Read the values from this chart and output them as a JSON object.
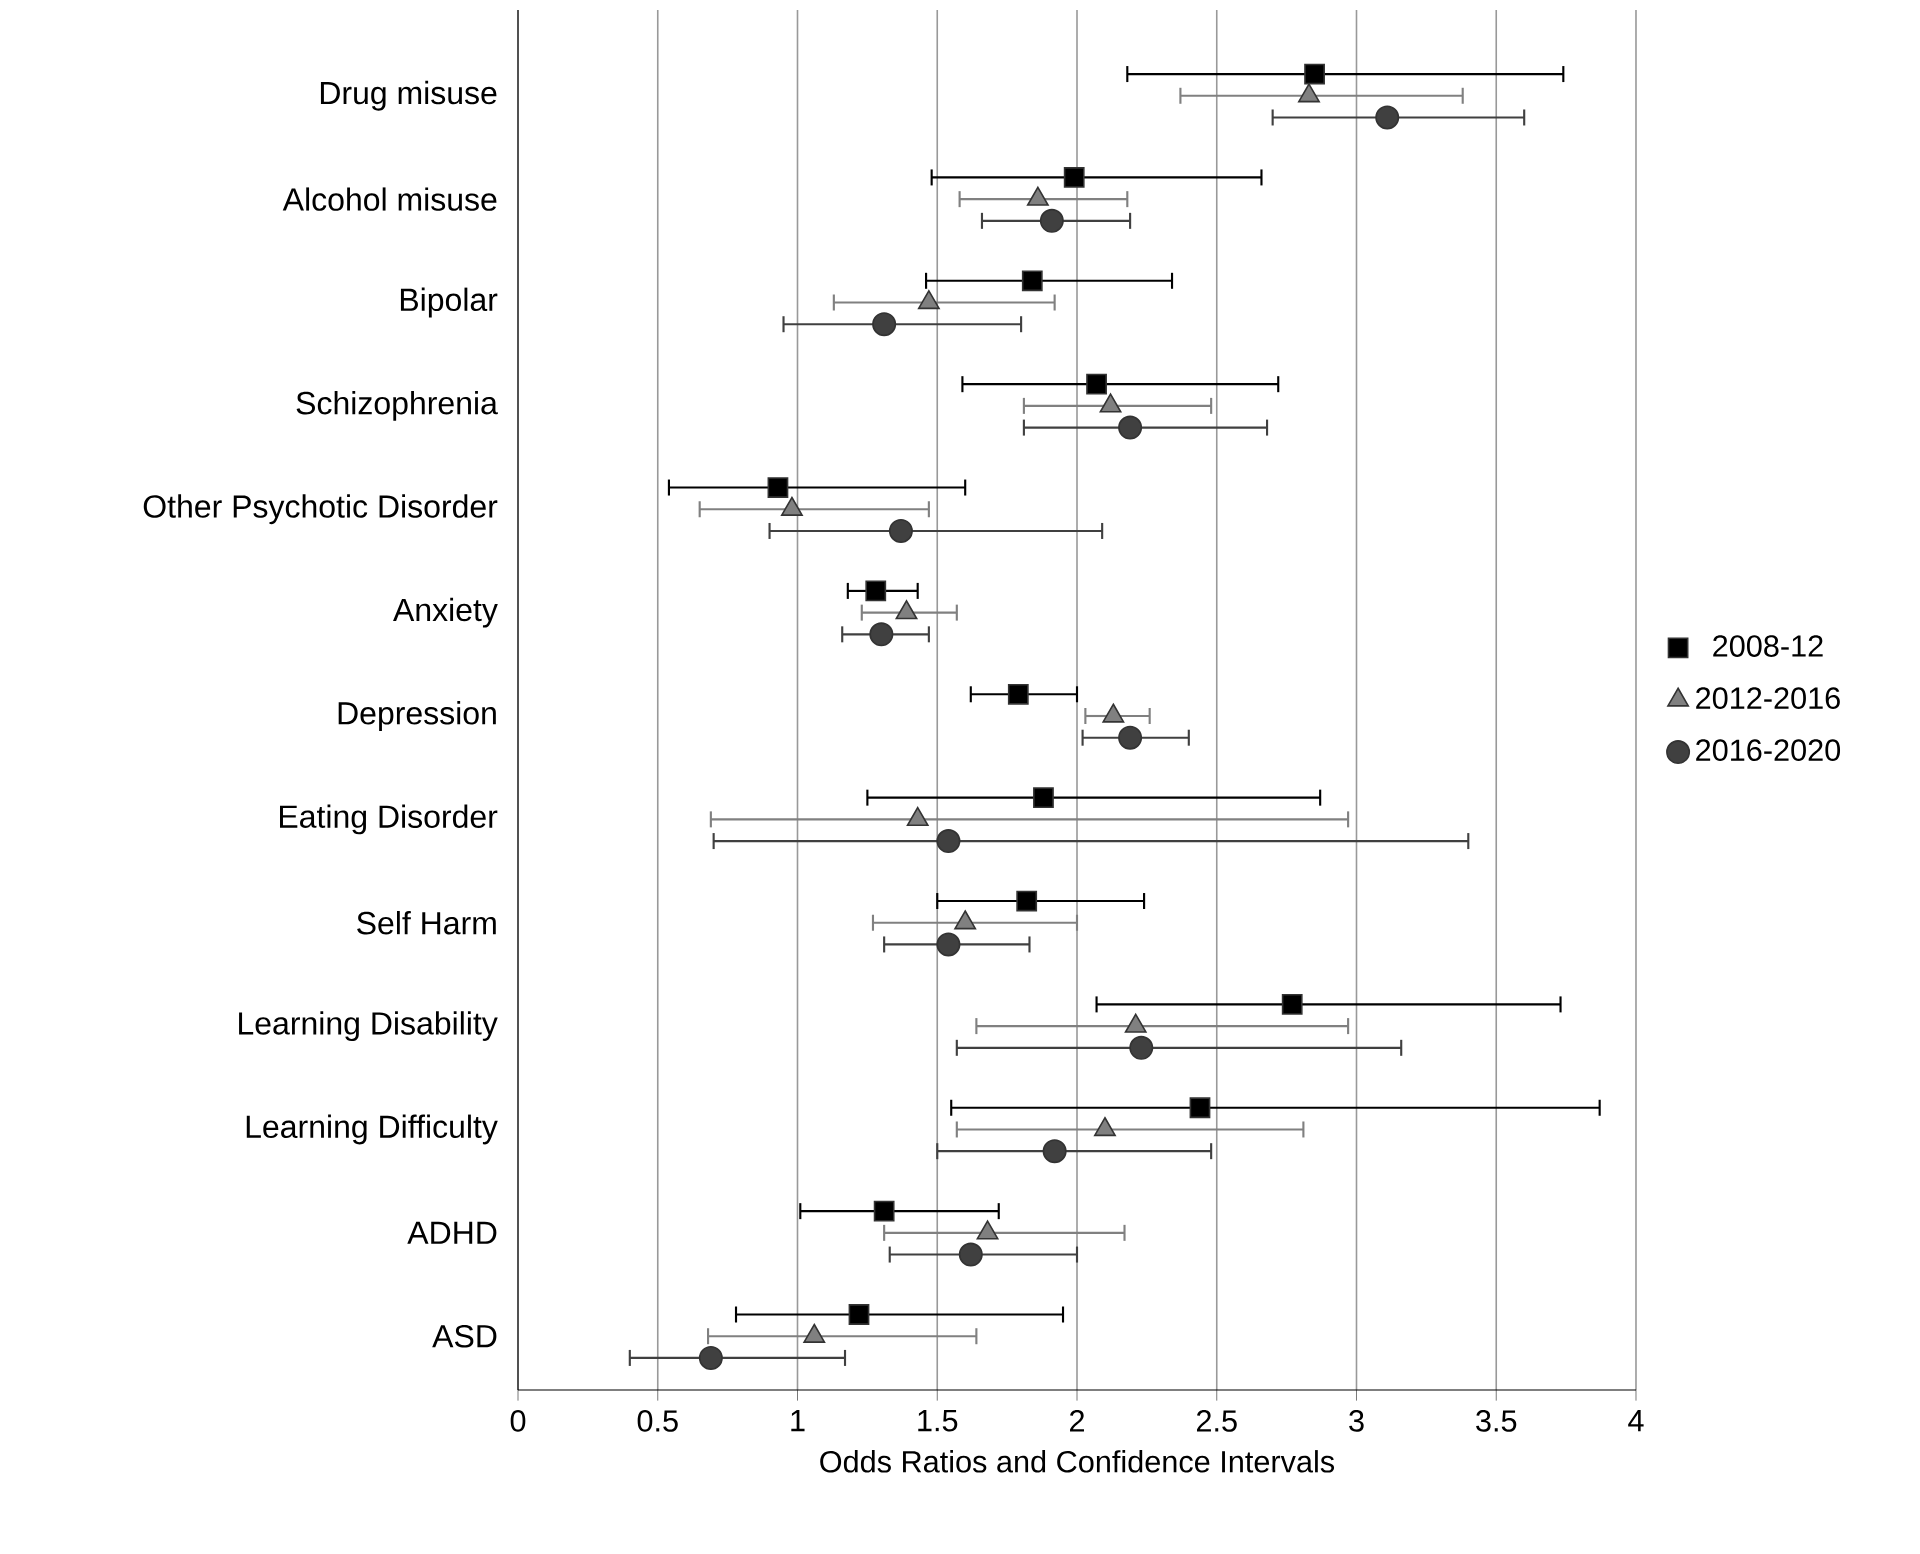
{
  "chart_data": {
    "type": "scatter",
    "orientation": "horizontal",
    "xlabel": "Odds Ratios and Confidence Intervals",
    "categories": [
      "Drug misuse",
      "Alcohol misuse",
      "Bipolar",
      "Schizophrenia",
      "Other Psychotic Disorder",
      "Anxiety",
      "Depression",
      "Eating Disorder",
      "Self Harm",
      "Learning Disability",
      "Learning Difficulty",
      "ADHD",
      "ASD"
    ],
    "series": [
      {
        "name": "2008-12",
        "color": "#000000",
        "marker": "square",
        "values": [
          2.85,
          1.99,
          1.84,
          2.07,
          0.93,
          1.28,
          1.79,
          1.88,
          1.82,
          2.77,
          2.44,
          1.31,
          1.22
        ],
        "errors": [
          [
            2.18,
            3.74
          ],
          [
            1.48,
            2.66
          ],
          [
            1.46,
            2.34
          ],
          [
            1.59,
            2.72
          ],
          [
            0.54,
            1.6
          ],
          [
            1.18,
            1.43
          ],
          [
            1.62,
            2.0
          ],
          [
            1.25,
            2.87
          ],
          [
            1.5,
            2.24
          ],
          [
            2.07,
            3.73
          ],
          [
            1.55,
            3.87
          ],
          [
            1.01,
            1.72
          ],
          [
            0.78,
            1.95
          ]
        ]
      },
      {
        "name": "2012-2016",
        "color": "#808080",
        "marker": "triangle",
        "values": [
          2.83,
          1.86,
          1.47,
          2.12,
          0.98,
          1.39,
          2.13,
          1.43,
          1.6,
          2.21,
          2.1,
          1.68,
          1.06
        ],
        "errors": [
          [
            2.37,
            3.38
          ],
          [
            1.58,
            2.18
          ],
          [
            1.13,
            1.92
          ],
          [
            1.81,
            2.48
          ],
          [
            0.65,
            1.47
          ],
          [
            1.23,
            1.57
          ],
          [
            2.03,
            2.26
          ],
          [
            0.69,
            2.97
          ],
          [
            1.27,
            2.0
          ],
          [
            1.64,
            2.97
          ],
          [
            1.57,
            2.81
          ],
          [
            1.31,
            2.17
          ],
          [
            0.68,
            1.64
          ]
        ]
      },
      {
        "name": "2016-2020",
        "color": "#404040",
        "marker": "circle",
        "values": [
          3.11,
          1.91,
          1.31,
          2.19,
          1.37,
          1.3,
          2.19,
          1.54,
          1.54,
          2.23,
          1.92,
          1.62,
          0.69
        ],
        "errors": [
          [
            2.7,
            3.6
          ],
          [
            1.66,
            2.19
          ],
          [
            0.95,
            1.8
          ],
          [
            1.81,
            2.68
          ],
          [
            0.9,
            2.09
          ],
          [
            1.16,
            1.47
          ],
          [
            2.02,
            2.4
          ],
          [
            0.7,
            3.4
          ],
          [
            1.31,
            1.83
          ],
          [
            1.57,
            3.16
          ],
          [
            1.5,
            2.48
          ],
          [
            1.33,
            2.0
          ],
          [
            0.4,
            1.17
          ]
        ]
      }
    ],
    "xlim": [
      0,
      4
    ],
    "xticks": [
      0,
      0.5,
      1,
      1.5,
      2,
      2.5,
      3,
      3.5,
      4
    ],
    "grid": "x",
    "legend": "right"
  }
}
